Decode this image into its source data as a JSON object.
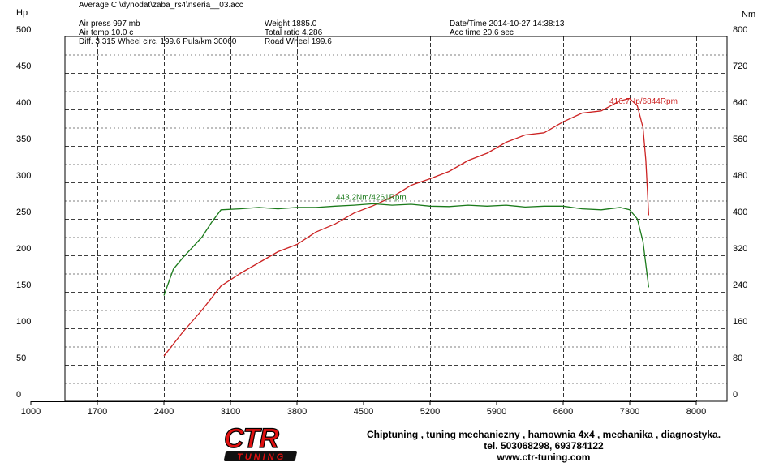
{
  "header": {
    "file_line": "Average C:\\dynodat\\zaba_rs4\\nseria__03.acc",
    "air_press": "Air press   997 mb",
    "air_temp": "Air temp  10.0 c",
    "diff_line": "Diff.    3.315   Wheel circ. 199.6   Puls/km  30060",
    "weight": "Weight    1885.0",
    "total_ratio": "Total ratio 4.286",
    "road_wheel": "Road Wheel 199.6",
    "datetime": "Date/Time  2014-10-27 14:38:13",
    "acc_time": "Acc time   20.6 sec"
  },
  "footer": {
    "line1": "Chiptuning , tuning mechaniczny , hamownia 4x4 , mechanika , diagnostyka.",
    "line2": "tel. 503068298, 693784122",
    "line3": "www.ctr-tuning.com",
    "logo_top": "CTR",
    "logo_bottom": "TUNING"
  },
  "colors": {
    "power": "#cc2222",
    "torque": "#1a7a1a",
    "grid": "#000000",
    "logo_red": "#e01010"
  },
  "chart_data": {
    "type": "line",
    "title": "",
    "xlabel": "",
    "ylabel_left": "Hp",
    "ylabel_right": "Nm",
    "xlim": [
      1000,
      8000
    ],
    "ylim_left": [
      0,
      500
    ],
    "ylim_right": [
      0,
      800
    ],
    "x_ticks": [
      1000,
      1700,
      2400,
      3100,
      3800,
      4500,
      5200,
      5900,
      6600,
      7300,
      8000
    ],
    "y_ticks_left": [
      0,
      50,
      100,
      150,
      200,
      250,
      300,
      350,
      400,
      450,
      500
    ],
    "y_ticks_right": [
      0,
      80,
      160,
      240,
      320,
      400,
      480,
      560,
      640,
      720,
      800
    ],
    "grid": true,
    "series": [
      {
        "name": "Power",
        "axis": "left",
        "x": [
          2400,
          2600,
          2800,
          3000,
          3200,
          3400,
          3600,
          3800,
          4000,
          4200,
          4400,
          4600,
          4800,
          5000,
          5200,
          5400,
          5600,
          5800,
          6000,
          6200,
          6400,
          6600,
          6800,
          7000,
          7200,
          7300,
          7380,
          7440,
          7470,
          7500
        ],
        "y": [
          62,
          95,
          125,
          158,
          175,
          190,
          205,
          215,
          232,
          243,
          258,
          268,
          280,
          296,
          305,
          315,
          330,
          340,
          355,
          365,
          368,
          383,
          395,
          398,
          412,
          415,
          405,
          375,
          330,
          255
        ]
      },
      {
        "name": "Torque",
        "axis": "right",
        "x": [
          2400,
          2500,
          2600,
          2800,
          2900,
          3000,
          3200,
          3400,
          3600,
          3800,
          4000,
          4200,
          4400,
          4600,
          4800,
          5000,
          5200,
          5400,
          5600,
          5800,
          6000,
          6200,
          6400,
          6600,
          6800,
          7000,
          7200,
          7300,
          7380,
          7440,
          7470,
          7500
        ],
        "y": [
          232,
          290,
          315,
          360,
          392,
          420,
          422,
          425,
          422,
          425,
          425,
          428,
          430,
          433,
          430,
          432,
          428,
          427,
          430,
          428,
          430,
          426,
          428,
          428,
          422,
          420,
          425,
          420,
          400,
          350,
          300,
          250
        ]
      }
    ],
    "annotations": [
      {
        "text": "416.7Hp/6844Rpm",
        "series": "Power",
        "x": 7300,
        "y": 416.7
      },
      {
        "text": "443.2Nm/4261Rpm",
        "series": "Torque",
        "x": 4500,
        "y": 443.2
      }
    ]
  }
}
